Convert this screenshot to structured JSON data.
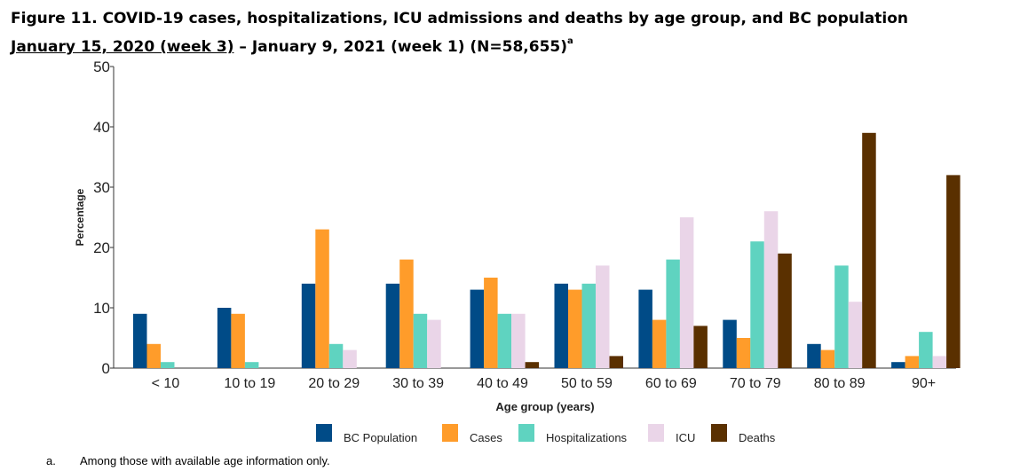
{
  "figure": {
    "title_line1": "Figure 11. COVID-19 cases, hospitalizations, ICU admissions and deaths by age group, and BC population",
    "title_line2_underlined": "January 15, 2020 (week 3)",
    "title_line2_rest": " – January 9, 2021 (week 1) (N=58,655)",
    "title_sup": "a"
  },
  "footnote": {
    "marker": "a.",
    "text": "Among those with available age information only."
  },
  "chart_data": {
    "type": "bar",
    "title": "",
    "xlabel": "Age group (years)",
    "ylabel": "Percentage",
    "ylim": [
      0,
      50
    ],
    "yticks": [
      0,
      10,
      20,
      30,
      40,
      50
    ],
    "grid": false,
    "legend_position": "bottom",
    "categories": [
      "< 10",
      "10 to 19",
      "20 to 29",
      "30 to 39",
      "40 to 49",
      "50 to 59",
      "60 to 69",
      "70 to 79",
      "80 to 89",
      "90+"
    ],
    "series": [
      {
        "name": "BC Population",
        "color": "#004b87",
        "values": [
          9,
          10,
          14,
          14,
          13,
          14,
          13,
          8,
          4,
          1
        ]
      },
      {
        "name": "Cases",
        "color": "#ff9c2a",
        "values": [
          4,
          9,
          23,
          18,
          15,
          13,
          8,
          5,
          3,
          2
        ]
      },
      {
        "name": "Hospitalizations",
        "color": "#5fd3c0",
        "values": [
          1,
          1,
          4,
          9,
          9,
          14,
          18,
          21,
          17,
          6
        ]
      },
      {
        "name": "ICU",
        "color": "#ead5e8",
        "values": [
          0,
          0,
          3,
          8,
          9,
          17,
          25,
          26,
          11,
          2
        ]
      },
      {
        "name": "Deaths",
        "color": "#5a3000",
        "values": [
          0,
          0,
          0,
          0,
          1,
          2,
          7,
          19,
          39,
          32
        ]
      }
    ]
  }
}
